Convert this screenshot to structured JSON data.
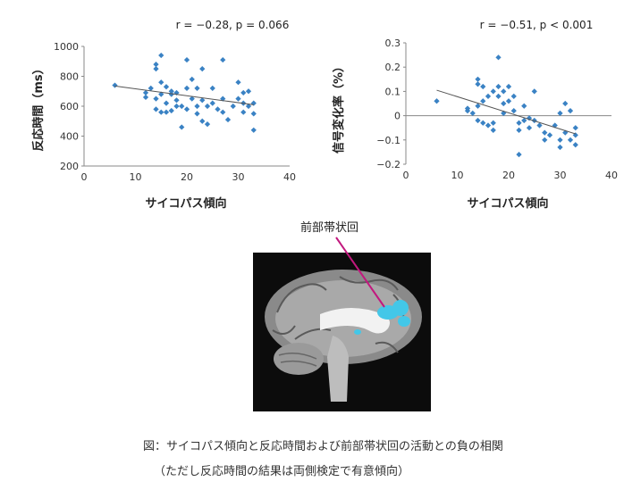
{
  "chart_data": [
    {
      "type": "scatter",
      "title": "r = −0.28, p = 0.066",
      "xlabel": "サイコパス傾向",
      "ylabel": "反応時間（ms）",
      "xlim": [
        0,
        40
      ],
      "ylim": [
        200,
        1000
      ],
      "xticks": [
        0,
        10,
        20,
        30,
        40
      ],
      "yticks": [
        200,
        400,
        600,
        800,
        1000
      ],
      "trendline": {
        "x": [
          6,
          33
        ],
        "y": [
          735,
          610
        ]
      },
      "marker_color": "#3a82c4",
      "points": [
        [
          6,
          740
        ],
        [
          12,
          690
        ],
        [
          12,
          660
        ],
        [
          13,
          720
        ],
        [
          14,
          650
        ],
        [
          14,
          580
        ],
        [
          14,
          850
        ],
        [
          14,
          880
        ],
        [
          15,
          940
        ],
        [
          15,
          760
        ],
        [
          15,
          680
        ],
        [
          15,
          560
        ],
        [
          16,
          730
        ],
        [
          16,
          620
        ],
        [
          16,
          560
        ],
        [
          17,
          700
        ],
        [
          17,
          680
        ],
        [
          17,
          570
        ],
        [
          18,
          690
        ],
        [
          18,
          640
        ],
        [
          18,
          600
        ],
        [
          19,
          600
        ],
        [
          19,
          460
        ],
        [
          20,
          910
        ],
        [
          20,
          720
        ],
        [
          20,
          580
        ],
        [
          21,
          780
        ],
        [
          21,
          650
        ],
        [
          22,
          720
        ],
        [
          22,
          600
        ],
        [
          22,
          550
        ],
        [
          23,
          850
        ],
        [
          23,
          640
        ],
        [
          23,
          500
        ],
        [
          24,
          600
        ],
        [
          24,
          480
        ],
        [
          25,
          720
        ],
        [
          25,
          620
        ],
        [
          26,
          580
        ],
        [
          27,
          910
        ],
        [
          27,
          650
        ],
        [
          27,
          560
        ],
        [
          28,
          510
        ],
        [
          29,
          600
        ],
        [
          30,
          760
        ],
        [
          30,
          650
        ],
        [
          31,
          620
        ],
        [
          31,
          690
        ],
        [
          31,
          560
        ],
        [
          32,
          700
        ],
        [
          32,
          600
        ],
        [
          33,
          620
        ],
        [
          33,
          550
        ],
        [
          33,
          440
        ]
      ]
    },
    {
      "type": "scatter",
      "title": "r = −0.51, p < 0.001",
      "xlabel": "サイコパス傾向",
      "ylabel": "信号変化率（%）",
      "xlim": [
        0,
        40
      ],
      "ylim": [
        -0.2,
        0.3
      ],
      "xticks": [
        0,
        10,
        20,
        30,
        40
      ],
      "yticks": [
        -0.2,
        -0.1,
        0,
        0.1,
        0.2,
        0.3
      ],
      "trendline": {
        "x": [
          6,
          33
        ],
        "y": [
          0.105,
          -0.075
        ]
      },
      "marker_color": "#3a82c4",
      "points": [
        [
          6,
          0.06
        ],
        [
          12,
          0.02
        ],
        [
          12,
          0.03
        ],
        [
          13,
          0.01
        ],
        [
          14,
          0.15
        ],
        [
          14,
          0.13
        ],
        [
          14,
          0.04
        ],
        [
          14,
          -0.02
        ],
        [
          15,
          0.12
        ],
        [
          15,
          0.06
        ],
        [
          15,
          -0.03
        ],
        [
          16,
          0.08
        ],
        [
          16,
          -0.04
        ],
        [
          17,
          0.1
        ],
        [
          17,
          -0.03
        ],
        [
          17,
          -0.06
        ],
        [
          18,
          0.24
        ],
        [
          18,
          0.12
        ],
        [
          18,
          0.08
        ],
        [
          19,
          0.1
        ],
        [
          19,
          0.05
        ],
        [
          19,
          0.01
        ],
        [
          20,
          0.12
        ],
        [
          20,
          0.06
        ],
        [
          21,
          0.08
        ],
        [
          21,
          0.02
        ],
        [
          22,
          -0.03
        ],
        [
          22,
          -0.06
        ],
        [
          22,
          -0.16
        ],
        [
          23,
          0.04
        ],
        [
          23,
          -0.02
        ],
        [
          24,
          -0.01
        ],
        [
          24,
          -0.05
        ],
        [
          25,
          0.1
        ],
        [
          25,
          -0.02
        ],
        [
          26,
          -0.04
        ],
        [
          27,
          -0.07
        ],
        [
          27,
          -0.1
        ],
        [
          28,
          -0.08
        ],
        [
          29,
          -0.04
        ],
        [
          30,
          -0.1
        ],
        [
          30,
          0.01
        ],
        [
          30,
          -0.13
        ],
        [
          31,
          0.05
        ],
        [
          31,
          -0.07
        ],
        [
          32,
          0.02
        ],
        [
          32,
          -0.1
        ],
        [
          33,
          -0.08
        ],
        [
          33,
          -0.12
        ],
        [
          33,
          -0.05
        ]
      ]
    }
  ],
  "brain_label": "前部帯状回",
  "caption_line1": "図：サイコパス傾向と反応時間および前部帯状回の活動との負の相関",
  "caption_line2": "（ただし反応時間の結果は両側検定で有意傾向）",
  "colors": {
    "points": "#3a82c4",
    "highlight": "#43c7e8",
    "pointer": "#c2187e"
  }
}
